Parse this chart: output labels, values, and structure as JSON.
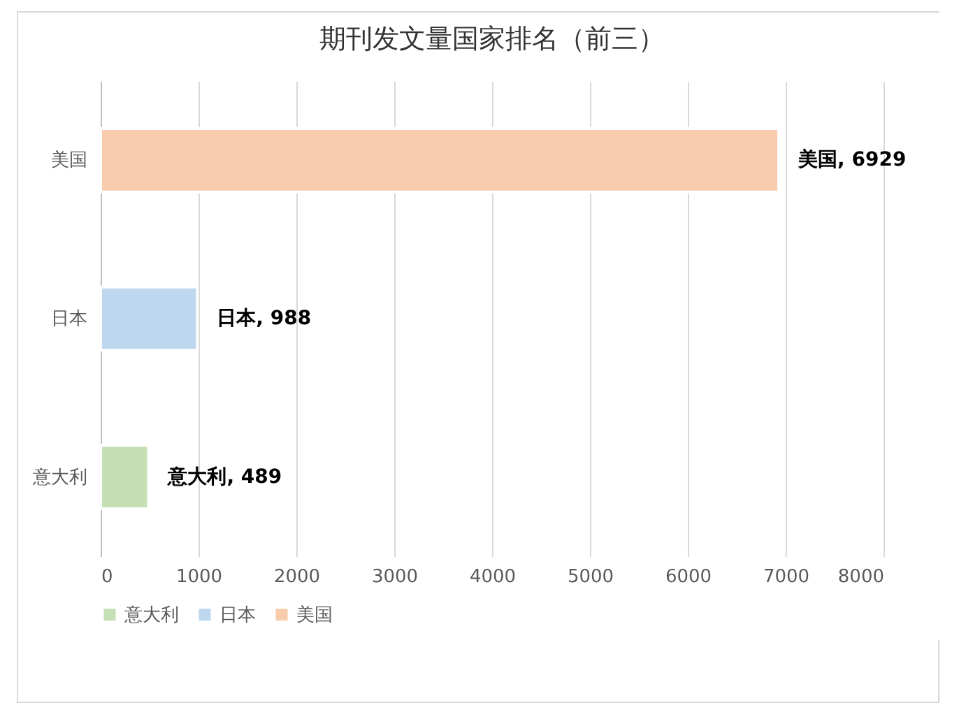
{
  "chart_data": {
    "type": "bar",
    "orientation": "horizontal",
    "title": "期刊发文量国家排名（前三）",
    "categories": [
      "美国",
      "日本",
      "意大利"
    ],
    "series": [
      {
        "name": "意大利",
        "color": "#c5e0b4",
        "values": [
          null,
          null,
          489
        ],
        "value_labels": [
          null,
          null,
          "意大利, 489"
        ]
      },
      {
        "name": "日本",
        "color": "#bdd7ee",
        "values": [
          null,
          988,
          null
        ],
        "value_labels": [
          null,
          "日本, 988",
          null
        ]
      },
      {
        "name": "美国",
        "color": "#f8cbad",
        "values": [
          6929,
          null,
          null
        ],
        "value_labels": [
          "美国, 6929",
          null,
          null
        ]
      }
    ],
    "xlim": [
      0,
      8000
    ],
    "xticks": [
      0,
      1000,
      2000,
      3000,
      4000,
      5000,
      6000,
      7000,
      8000
    ],
    "grid": "x",
    "legend": "bottom"
  }
}
